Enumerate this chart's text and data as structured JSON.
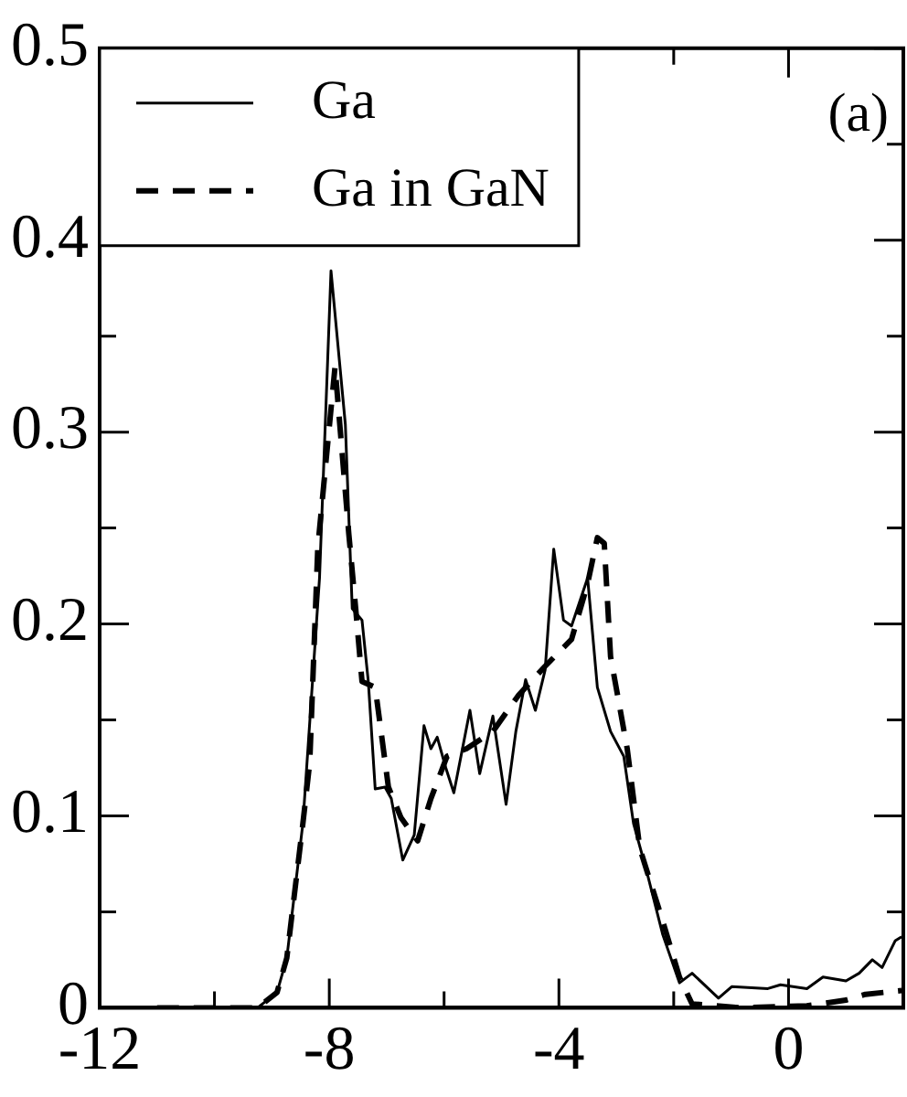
{
  "chart_data": {
    "type": "line",
    "annotations": [
      "(a)"
    ],
    "xlim": [
      -12,
      2
    ],
    "ylim": [
      0,
      0.5
    ],
    "xticks": [
      -12,
      {
        "value": -10,
        "label": null
      },
      -8,
      {
        "value": -6,
        "label": null
      },
      -4,
      {
        "value": -2,
        "label": null
      },
      0
    ],
    "yticks": [
      0,
      {
        "value": 0.05,
        "label": null
      },
      0.1,
      {
        "value": 0.15,
        "label": null
      },
      0.2,
      {
        "value": 0.25,
        "label": null
      },
      0.3,
      {
        "value": 0.35,
        "label": null
      },
      0.4,
      {
        "value": 0.45,
        "label": null
      },
      0.5
    ],
    "grid": false,
    "legend": "top left",
    "marker": "none",
    "series": [
      {
        "name": "Ga",
        "color": "#000000",
        "line_style": "solid",
        "x": [
          -11,
          -9.25,
          -8.91,
          -8.74,
          -8.46,
          -8.17,
          -7.97,
          -7.72,
          -7.6,
          -7.43,
          -7.32,
          -7.2,
          -7.03,
          -6.92,
          -6.72,
          -6.52,
          -6.35,
          -6.23,
          -6.12,
          -5.97,
          -5.83,
          -5.55,
          -5.38,
          -5.15,
          -4.92,
          -4.75,
          -4.58,
          -4.41,
          -4.24,
          -4.09,
          -3.92,
          -3.78,
          -3.5,
          -3.33,
          -3.1,
          -2.87,
          -2.7,
          -2.47,
          -2.19,
          -1.9,
          -1.68,
          -1.22,
          -0.99,
          -0.36,
          -0.14,
          0.32,
          0.6,
          1.0,
          1.23,
          1.46,
          1.63,
          1.86,
          1.97
        ],
        "values": [
          0,
          0,
          0.008,
          0.026,
          0.096,
          0.224,
          0.384,
          0.304,
          0.208,
          0.202,
          0.17,
          0.114,
          0.115,
          0.109,
          0.077,
          0.09,
          0.147,
          0.135,
          0.141,
          0.125,
          0.112,
          0.155,
          0.122,
          0.152,
          0.106,
          0.144,
          0.171,
          0.155,
          0.176,
          0.239,
          0.202,
          0.199,
          0.224,
          0.167,
          0.144,
          0.131,
          0.096,
          0.071,
          0.038,
          0.013,
          0.018,
          0.005,
          0.011,
          0.01,
          0.012,
          0.01,
          0.016,
          0.014,
          0.018,
          0.025,
          0.021,
          0.035,
          0.037
        ]
      },
      {
        "name": "Ga in GaN",
        "color": "#000000",
        "line_style": "dashed",
        "x": [
          -11,
          -9.25,
          -8.91,
          -8.74,
          -8.46,
          -8.34,
          -8.2,
          -7.9,
          -7.66,
          -7.54,
          -7.43,
          -7.2,
          -6.97,
          -6.75,
          -6.46,
          -6.23,
          -5.95,
          -5.61,
          -5.15,
          -4.7,
          -4.24,
          -3.78,
          -3.5,
          -3.33,
          -3.21,
          -3.1,
          -2.81,
          -2.59,
          -2.19,
          -1.9,
          -1.68,
          -0.82,
          0.32,
          1.0,
          1.34,
          1.97
        ],
        "values": [
          0,
          0,
          0.008,
          0.026,
          0.096,
          0.128,
          0.24,
          0.334,
          0.247,
          0.208,
          0.17,
          0.167,
          0.115,
          0.099,
          0.087,
          0.109,
          0.131,
          0.135,
          0.144,
          0.163,
          0.178,
          0.192,
          0.221,
          0.245,
          0.242,
          0.183,
          0.135,
          0.083,
          0.045,
          0.016,
          0.002,
          0,
          0.001,
          0.004,
          0.007,
          0.009
        ]
      }
    ]
  }
}
